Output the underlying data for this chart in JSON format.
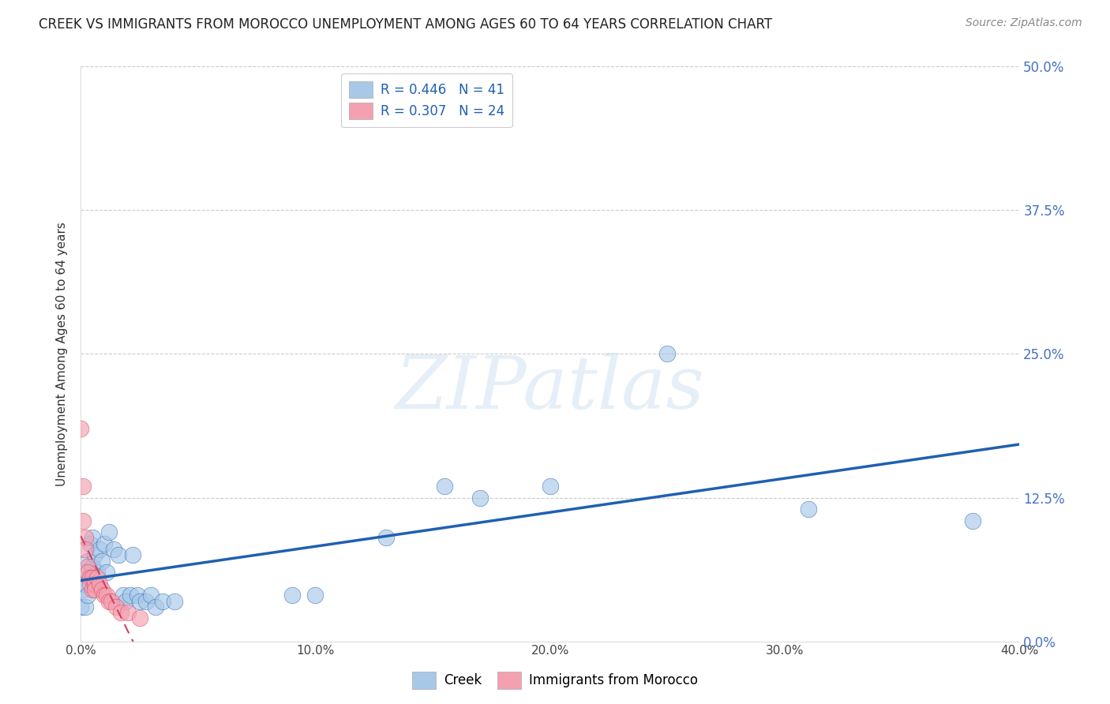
{
  "title": "CREEK VS IMMIGRANTS FROM MOROCCO UNEMPLOYMENT AMONG AGES 60 TO 64 YEARS CORRELATION CHART",
  "source": "Source: ZipAtlas.com",
  "ylabel_label": "Unemployment Among Ages 60 to 64 years",
  "creek_R": "0.446",
  "creek_N": "41",
  "morocco_R": "0.307",
  "morocco_N": "24",
  "xlim": [
    0.0,
    0.4
  ],
  "ylim": [
    0.0,
    0.5
  ],
  "watermark": "ZIPatlas",
  "creek_color": "#a8c8e8",
  "morocco_color": "#f4a0b0",
  "creek_line_color": "#2060b0",
  "morocco_line_color": "#d04060",
  "creek_scatter": [
    [
      0.0,
      0.03
    ],
    [
      0.001,
      0.045
    ],
    [
      0.001,
      0.06
    ],
    [
      0.002,
      0.03
    ],
    [
      0.002,
      0.05
    ],
    [
      0.003,
      0.04
    ],
    [
      0.003,
      0.07
    ],
    [
      0.004,
      0.055
    ],
    [
      0.004,
      0.085
    ],
    [
      0.005,
      0.065
    ],
    [
      0.005,
      0.09
    ],
    [
      0.006,
      0.075
    ],
    [
      0.006,
      0.05
    ],
    [
      0.007,
      0.06
    ],
    [
      0.008,
      0.08
    ],
    [
      0.009,
      0.07
    ],
    [
      0.01,
      0.085
    ],
    [
      0.011,
      0.06
    ],
    [
      0.012,
      0.095
    ],
    [
      0.014,
      0.08
    ],
    [
      0.016,
      0.075
    ],
    [
      0.018,
      0.04
    ],
    [
      0.019,
      0.035
    ],
    [
      0.021,
      0.04
    ],
    [
      0.022,
      0.075
    ],
    [
      0.024,
      0.04
    ],
    [
      0.025,
      0.035
    ],
    [
      0.028,
      0.035
    ],
    [
      0.03,
      0.04
    ],
    [
      0.032,
      0.03
    ],
    [
      0.035,
      0.035
    ],
    [
      0.04,
      0.035
    ],
    [
      0.09,
      0.04
    ],
    [
      0.1,
      0.04
    ],
    [
      0.13,
      0.09
    ],
    [
      0.155,
      0.135
    ],
    [
      0.17,
      0.125
    ],
    [
      0.2,
      0.135
    ],
    [
      0.25,
      0.25
    ],
    [
      0.31,
      0.115
    ],
    [
      0.38,
      0.105
    ]
  ],
  "morocco_scatter": [
    [
      0.0,
      0.185
    ],
    [
      0.001,
      0.135
    ],
    [
      0.001,
      0.105
    ],
    [
      0.002,
      0.09
    ],
    [
      0.002,
      0.08
    ],
    [
      0.003,
      0.065
    ],
    [
      0.003,
      0.06
    ],
    [
      0.004,
      0.055
    ],
    [
      0.004,
      0.05
    ],
    [
      0.005,
      0.045
    ],
    [
      0.005,
      0.055
    ],
    [
      0.006,
      0.05
    ],
    [
      0.006,
      0.045
    ],
    [
      0.007,
      0.055
    ],
    [
      0.008,
      0.05
    ],
    [
      0.009,
      0.045
    ],
    [
      0.01,
      0.04
    ],
    [
      0.011,
      0.04
    ],
    [
      0.012,
      0.035
    ],
    [
      0.013,
      0.035
    ],
    [
      0.015,
      0.03
    ],
    [
      0.017,
      0.025
    ],
    [
      0.02,
      0.025
    ],
    [
      0.025,
      0.02
    ]
  ],
  "background_color": "#ffffff",
  "grid_color": "#cccccc",
  "title_color": "#222222",
  "right_axis_color": "#4472c4",
  "x_tick_vals": [
    0.0,
    0.1,
    0.2,
    0.3,
    0.4
  ],
  "x_tick_labels": [
    "0.0%",
    "10.0%",
    "20.0%",
    "30.0%",
    "40.0%"
  ],
  "y_tick_vals": [
    0.0,
    0.125,
    0.25,
    0.375,
    0.5
  ],
  "y_tick_labels": [
    "0.0%",
    "12.5%",
    "25.0%",
    "37.5%",
    "50.0%"
  ]
}
